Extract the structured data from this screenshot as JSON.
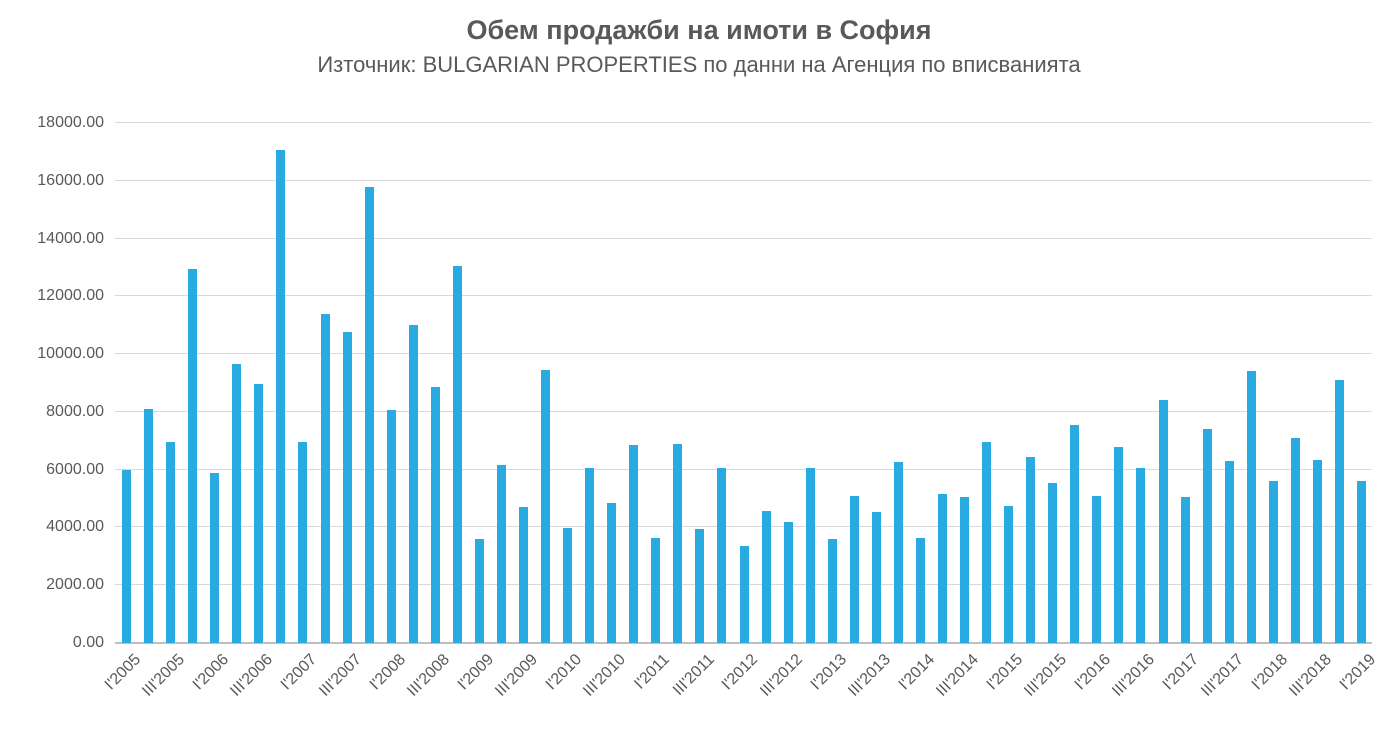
{
  "header": {
    "title": "Обем продажби на имоти в София",
    "subtitle": "Източник: BULGARIAN PROPERTIES по данни на Агенция по вписванията"
  },
  "chart_data": {
    "type": "bar",
    "title": "Обем продажби на имоти в София",
    "subtitle": "Източник: BULGARIAN PROPERTIES по данни на Агенция по вписванията",
    "xlabel": "",
    "ylabel": "",
    "ylim": [
      0,
      18000
    ],
    "y_tick_step": 2000,
    "y_tick_labels": [
      "0.00",
      "2000.00",
      "4000.00",
      "6000.00",
      "8000.00",
      "10000.00",
      "12000.00",
      "14000.00",
      "16000.00",
      "18000.00"
    ],
    "grid": true,
    "legend": false,
    "bar_color": "#29abe2",
    "gridline_color": "#d9d9d9",
    "axis_line_color": "#bfbfbf",
    "axis_text_color": "#595959",
    "categories": [
      "I'2005",
      "II'2005",
      "III'2005",
      "IV'2005",
      "I'2006",
      "II'2006",
      "III'2006",
      "IV'2006",
      "I'2007",
      "II'2007",
      "III'2007",
      "IV'2007",
      "I'2008",
      "II'2008",
      "III'2008",
      "IV'2008",
      "I'2009",
      "II'2009",
      "III'2009",
      "IV'2009",
      "I'2010",
      "II'2010",
      "III'2010",
      "IV'2010",
      "I'2011",
      "II'2011",
      "III'2011",
      "IV'2011",
      "I'2012",
      "II'2012",
      "III'2012",
      "IV'2012",
      "I'2013",
      "II'2013",
      "III'2013",
      "IV'2013",
      "I'2014",
      "II'2014",
      "III'2014",
      "IV'2014",
      "I'2015",
      "II'2015",
      "III'2015",
      "IV'2015",
      "I'2016",
      "II'2016",
      "III'2016",
      "IV'2016",
      "I'2017",
      "II'2017",
      "III'2017",
      "IV'2017",
      "I'2018",
      "II'2018",
      "III'2018",
      "IV'2018",
      "I'2019"
    ],
    "values": [
      6000,
      8100,
      6950,
      12950,
      5900,
      9650,
      8950,
      17050,
      6950,
      11400,
      10750,
      15800,
      8050,
      11000,
      8850,
      13050,
      3600,
      6150,
      4700,
      9450,
      3970,
      6050,
      4850,
      6850,
      3650,
      6900,
      3950,
      6050,
      3350,
      4580,
      4200,
      6050,
      3600,
      5100,
      4550,
      6250,
      3650,
      5150,
      5050,
      6950,
      4750,
      6450,
      5550,
      7550,
      5100,
      6800,
      6050,
      8400,
      5050,
      7400,
      6300,
      9400,
      5600,
      7100,
      6350,
      9100,
      5600
    ],
    "x_tick_labels": [
      "I'2005",
      "III'2005",
      "I'2006",
      "III'2006",
      "I'2007",
      "III'2007",
      "I'2008",
      "III'2008",
      "I'2009",
      "III'2009",
      "I'2010",
      "III'2010",
      "I'2011",
      "III'2011",
      "I'2012",
      "III'2012",
      "I'2013",
      "III'2013",
      "I'2014",
      "III'2014",
      "I'2015",
      "III'2015",
      "I'2016",
      "III'2016",
      "I'2017",
      "III'2017",
      "I'2018",
      "III'2018",
      "I'2019"
    ],
    "x_tick_every": 2
  }
}
